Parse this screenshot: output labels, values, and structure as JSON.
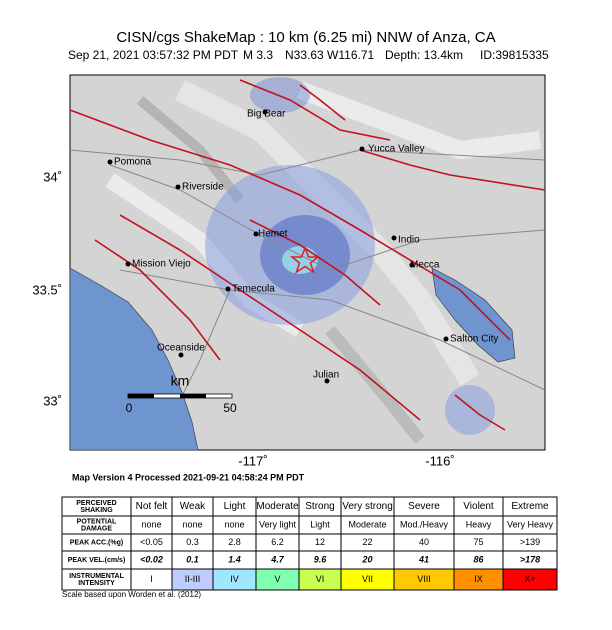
{
  "header": {
    "title": "CISN/cgs ShakeMap : 10 km (6.25 mi) NNW of Anza, CA",
    "subtitle": [
      "Sep 21, 2021 03:57:32 PM PDT",
      "M 3.3",
      "N33.63 W116.71",
      "Depth: 13.4km",
      "ID:39815335"
    ]
  },
  "map": {
    "lat_labels": [
      "34˚",
      "33.5˚",
      "33˚"
    ],
    "lon_labels": [
      "-117˚",
      "-116˚"
    ],
    "cities": [
      "Big Bear",
      "Yucca Valley",
      "Pomona",
      "Riverside",
      "Hemet",
      "Indio",
      "Mission Viejo",
      "Mecca",
      "Temecula",
      "Salton City",
      "Oceanside",
      "Julian"
    ],
    "scale": {
      "unit": "km",
      "start": "0",
      "end": "50"
    },
    "version": "Map Version 4 Processed 2021-09-21 04:58:24 PM PDT"
  },
  "table": {
    "row_labels": [
      [
        "PERCEIVED",
        "SHAKING"
      ],
      [
        "POTENTIAL",
        "DAMAGE"
      ],
      [
        "PEAK ACC.(%g)"
      ],
      [
        "PEAK VEL.(cm/s)"
      ],
      [
        "INSTRUMENTAL",
        "INTENSITY"
      ]
    ],
    "rows": [
      [
        "Not felt",
        "Weak",
        "Light",
        "Moderate",
        "Strong",
        "Very strong",
        "Severe",
        "Violent",
        "Extreme"
      ],
      [
        "none",
        "none",
        "none",
        "Very light",
        "Light",
        "Moderate",
        "Mod./Heavy",
        "Heavy",
        "Very Heavy"
      ],
      [
        "<0.05",
        "0.3",
        "2.8",
        "6.2",
        "12",
        "22",
        "40",
        "75",
        ">139"
      ],
      [
        "<0.02",
        "0.1",
        "1.4",
        "4.7",
        "9.6",
        "20",
        "41",
        "86",
        ">178"
      ],
      [
        "I",
        "II-III",
        "IV",
        "V",
        "VI",
        "VII",
        "VIII",
        "IX",
        "X+"
      ]
    ],
    "intensity_colors": [
      "#ffffff",
      "#bfccff",
      "#a0e6ff",
      "#80ffb0",
      "#c8ff50",
      "#ffff00",
      "#ffc800",
      "#ff9100",
      "#ff0000"
    ]
  },
  "footer": "Scale based upon Worden et al. (2012)"
}
